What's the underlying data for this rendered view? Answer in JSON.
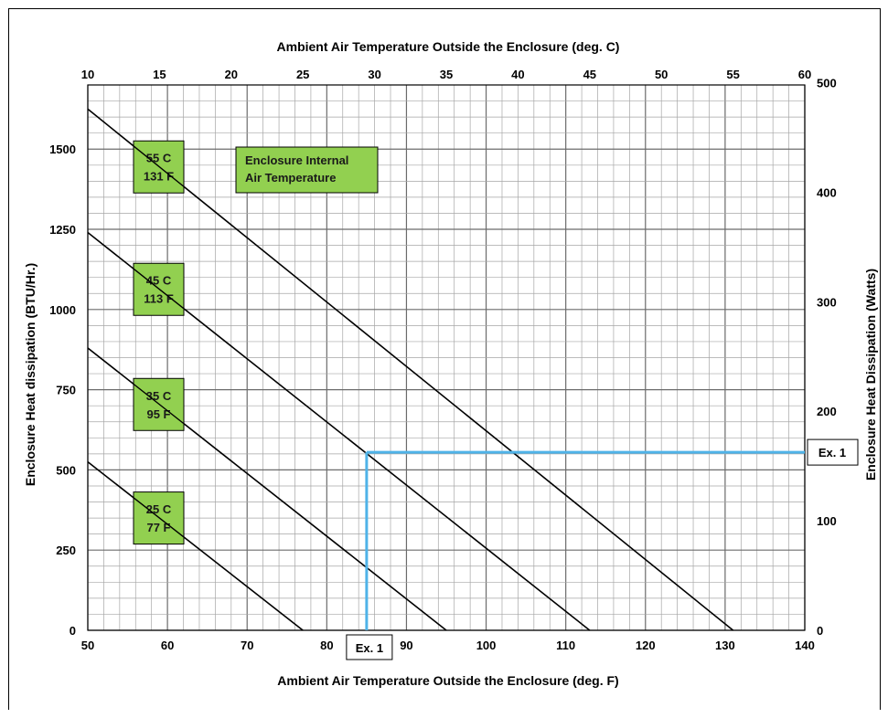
{
  "chart_data": {
    "type": "line",
    "top_axis_title": "Ambient Air Temperature Outside the Enclosure (deg. C)",
    "bottom_axis_title": "Ambient Air Temperature Outside the Enclosure (deg. F)",
    "left_axis_title": "Enclosure Heat dissipation (BTU/Hr.)",
    "right_axis_title": "Enclosure Heat Dissipation (Watts)",
    "x_f_range": [
      50,
      140
    ],
    "x_c_range": [
      10,
      60
    ],
    "y_btu_range": [
      0,
      1700
    ],
    "y_watts_range": [
      0,
      498
    ],
    "x_f_ticks": [
      "50",
      "60",
      "70",
      "80",
      "90",
      "100",
      "110",
      "120",
      "130",
      "140"
    ],
    "x_c_ticks": [
      "10",
      "15",
      "20",
      "25",
      "30",
      "35",
      "40",
      "45",
      "50",
      "55",
      "60"
    ],
    "y_btu_ticks": [
      "0",
      "250",
      "500",
      "750",
      "1000",
      "1250",
      "1500"
    ],
    "y_watts_ticks": [
      "0",
      "100",
      "200",
      "300",
      "400",
      "500"
    ],
    "grid": true,
    "legend_title": "Enclosure Internal Air Temperature",
    "legend_lines": [
      "Enclosure Internal",
      "Air Temperature"
    ],
    "series": [
      {
        "label_c": "25 C",
        "label_f": "77 F",
        "points": [
          [
            50,
            525
          ],
          [
            77,
            0
          ]
        ]
      },
      {
        "label_c": "35 C",
        "label_f": "95 F",
        "points": [
          [
            50,
            880
          ],
          [
            95,
            0
          ]
        ]
      },
      {
        "label_c": "45 C",
        "label_f": "113 F",
        "points": [
          [
            50,
            1240
          ],
          [
            113,
            0
          ]
        ]
      },
      {
        "label_c": "55 C",
        "label_f": "131 F",
        "points": [
          [
            50,
            1625
          ],
          [
            131,
            0
          ]
        ]
      }
    ],
    "example": {
      "label": "Ex. 1",
      "x_f": 85,
      "y_btu": 555,
      "color": "#4FB3E8"
    },
    "colors": {
      "label_box_fill": "#92D050",
      "curve": "#000000",
      "grid_minor": "#a6a6a6",
      "grid_major": "#6b6b6b"
    }
  }
}
